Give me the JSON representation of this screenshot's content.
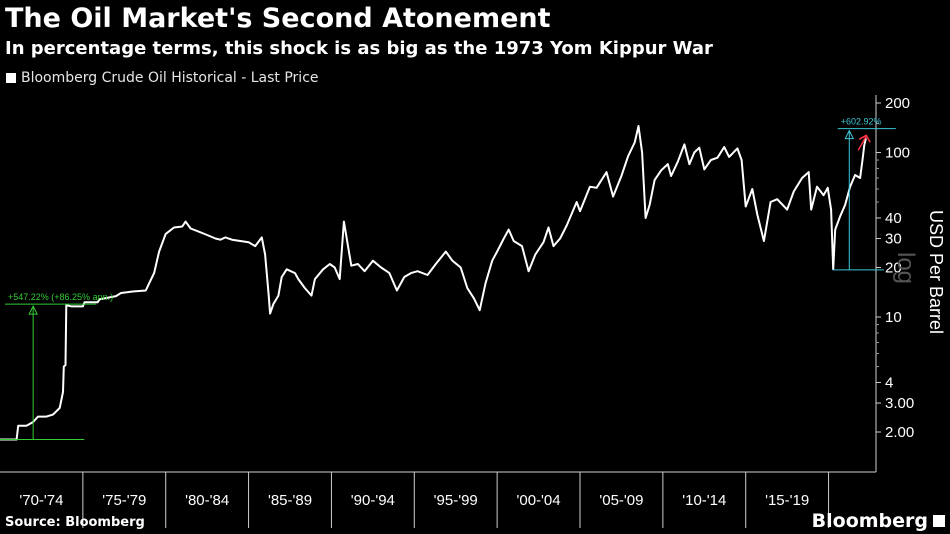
{
  "header": {
    "title": "The Oil Market's Second Atonement",
    "subtitle": "In percentage terms, this shock is as big as the 1973 Yom Kippur War"
  },
  "legend": {
    "label": "Bloomberg Crude Oil Historical - Last Price",
    "color": "#ffffff"
  },
  "footer": {
    "source": "Source: Bloomberg",
    "brand": "Bloomberg"
  },
  "colors": {
    "background": "#000000",
    "line": "#ffffff",
    "green": "#33cc33",
    "cyan": "#3cc6d6",
    "red": "#ff3344"
  },
  "chart_data": {
    "type": "line",
    "title": "The Oil Market's Second Atonement",
    "ylabel": "USD Per Barrel",
    "yscale": "log",
    "scale_label": "log",
    "ylim": [
      1.5,
      215
    ],
    "xlim": [
      1970.0,
      2022.5
    ],
    "y_ticks": [
      {
        "v": 200,
        "label": "200"
      },
      {
        "v": 100,
        "label": "100"
      },
      {
        "v": 40,
        "label": "40"
      },
      {
        "v": 30,
        "label": "30"
      },
      {
        "v": 20,
        "label": "20"
      },
      {
        "v": 10,
        "label": "10"
      },
      {
        "v": 4,
        "label": "4"
      },
      {
        "v": 3,
        "label": "3.00"
      },
      {
        "v": 2,
        "label": "2.00"
      }
    ],
    "x_categories": [
      "'70-'74",
      "'75-'79",
      "'80-'84",
      "'85-'89",
      "'90-'94",
      "'95-'99",
      "'00-'04",
      "'05-'09",
      "'10-'14",
      "'15-'19"
    ],
    "series": [
      {
        "name": "Bloomberg Crude Oil Historical - Last Price",
        "color": "#ffffff",
        "points": [
          [
            1970.0,
            1.8
          ],
          [
            1971.0,
            1.8
          ],
          [
            1971.1,
            2.18
          ],
          [
            1971.6,
            2.18
          ],
          [
            1972.0,
            2.3
          ],
          [
            1972.3,
            2.48
          ],
          [
            1972.8,
            2.48
          ],
          [
            1973.2,
            2.55
          ],
          [
            1973.6,
            2.8
          ],
          [
            1973.8,
            3.5
          ],
          [
            1973.85,
            5.0
          ],
          [
            1973.95,
            5.1
          ],
          [
            1974.0,
            11.8
          ],
          [
            1974.3,
            11.6
          ],
          [
            1975.0,
            11.6
          ],
          [
            1975.1,
            12.3
          ],
          [
            1975.9,
            12.3
          ],
          [
            1976.0,
            12.8
          ],
          [
            1977.0,
            13.4
          ],
          [
            1977.3,
            14.0
          ],
          [
            1978.0,
            14.3
          ],
          [
            1978.8,
            14.5
          ],
          [
            1979.0,
            16.0
          ],
          [
            1979.3,
            18.5
          ],
          [
            1979.6,
            25.0
          ],
          [
            1980.0,
            32.0
          ],
          [
            1980.5,
            35.0
          ],
          [
            1981.0,
            35.5
          ],
          [
            1981.2,
            38.0
          ],
          [
            1981.5,
            34.5
          ],
          [
            1982.0,
            33.0
          ],
          [
            1982.5,
            31.5
          ],
          [
            1983.0,
            30.0
          ],
          [
            1983.3,
            29.5
          ],
          [
            1983.6,
            30.5
          ],
          [
            1984.0,
            29.5
          ],
          [
            1984.5,
            29.0
          ],
          [
            1985.0,
            28.5
          ],
          [
            1985.4,
            27.0
          ],
          [
            1985.8,
            30.5
          ],
          [
            1986.0,
            24.0
          ],
          [
            1986.2,
            14.0
          ],
          [
            1986.3,
            10.5
          ],
          [
            1986.5,
            12.0
          ],
          [
            1986.8,
            13.5
          ],
          [
            1987.0,
            17.5
          ],
          [
            1987.3,
            19.5
          ],
          [
            1987.8,
            18.5
          ],
          [
            1988.0,
            17.0
          ],
          [
            1988.4,
            15.0
          ],
          [
            1988.8,
            13.5
          ],
          [
            1989.0,
            17.0
          ],
          [
            1989.5,
            19.5
          ],
          [
            1989.9,
            21.0
          ],
          [
            1990.2,
            20.0
          ],
          [
            1990.5,
            17.0
          ],
          [
            1990.75,
            38.0
          ],
          [
            1991.0,
            27.0
          ],
          [
            1991.2,
            20.5
          ],
          [
            1991.6,
            21.0
          ],
          [
            1992.0,
            19.0
          ],
          [
            1992.5,
            22.0
          ],
          [
            1993.0,
            20.0
          ],
          [
            1993.5,
            18.5
          ],
          [
            1993.95,
            14.5
          ],
          [
            1994.4,
            17.5
          ],
          [
            1994.8,
            18.5
          ],
          [
            1995.2,
            19.0
          ],
          [
            1995.8,
            18.0
          ],
          [
            1996.3,
            21.0
          ],
          [
            1996.9,
            25.0
          ],
          [
            1997.3,
            22.0
          ],
          [
            1997.8,
            20.0
          ],
          [
            1998.2,
            15.0
          ],
          [
            1998.6,
            13.0
          ],
          [
            1998.95,
            11.0
          ],
          [
            1999.3,
            16.0
          ],
          [
            1999.7,
            22.0
          ],
          [
            2000.0,
            25.0
          ],
          [
            2000.4,
            30.0
          ],
          [
            2000.7,
            34.0
          ],
          [
            2001.0,
            29.0
          ],
          [
            2001.5,
            27.0
          ],
          [
            2001.9,
            19.0
          ],
          [
            2002.3,
            24.0
          ],
          [
            2002.8,
            28.5
          ],
          [
            2003.1,
            35.0
          ],
          [
            2003.4,
            27.0
          ],
          [
            2003.8,
            30.0
          ],
          [
            2004.2,
            36.0
          ],
          [
            2004.8,
            50.0
          ],
          [
            2005.0,
            44.0
          ],
          [
            2005.6,
            62.0
          ],
          [
            2006.0,
            61.0
          ],
          [
            2006.6,
            76.0
          ],
          [
            2007.0,
            54.0
          ],
          [
            2007.5,
            72.0
          ],
          [
            2007.9,
            95.0
          ],
          [
            2008.3,
            115.0
          ],
          [
            2008.53,
            145.0
          ],
          [
            2008.75,
            100.0
          ],
          [
            2008.96,
            40.0
          ],
          [
            2009.2,
            48.0
          ],
          [
            2009.5,
            68.0
          ],
          [
            2009.9,
            78.0
          ],
          [
            2010.3,
            85.0
          ],
          [
            2010.5,
            72.0
          ],
          [
            2010.9,
            88.0
          ],
          [
            2011.3,
            112.0
          ],
          [
            2011.6,
            85.0
          ],
          [
            2011.9,
            100.0
          ],
          [
            2012.2,
            107.0
          ],
          [
            2012.5,
            79.0
          ],
          [
            2012.9,
            90.0
          ],
          [
            2013.3,
            93.0
          ],
          [
            2013.7,
            108.0
          ],
          [
            2014.0,
            94.0
          ],
          [
            2014.5,
            106.0
          ],
          [
            2014.75,
            90.0
          ],
          [
            2015.0,
            47.0
          ],
          [
            2015.4,
            60.0
          ],
          [
            2015.7,
            42.0
          ],
          [
            2016.1,
            29.0
          ],
          [
            2016.5,
            50.0
          ],
          [
            2016.9,
            52.0
          ],
          [
            2017.5,
            45.0
          ],
          [
            2017.9,
            58.0
          ],
          [
            2018.4,
            70.0
          ],
          [
            2018.8,
            76.0
          ],
          [
            2018.95,
            45.0
          ],
          [
            2019.3,
            62.0
          ],
          [
            2019.7,
            55.0
          ],
          [
            2019.95,
            61.0
          ],
          [
            2020.15,
            45.0
          ],
          [
            2020.28,
            19.5
          ],
          [
            2020.4,
            34.0
          ],
          [
            2020.7,
            41.0
          ],
          [
            2021.0,
            48.0
          ],
          [
            2021.3,
            62.0
          ],
          [
            2021.6,
            73.0
          ],
          [
            2021.9,
            70.0
          ],
          [
            2022.05,
            90.0
          ],
          [
            2022.15,
            110.0
          ],
          [
            2022.25,
            122.0
          ]
        ]
      }
    ],
    "annotations": [
      {
        "text": "+547.22% (+86.25% ann.)",
        "color": "#33cc33",
        "from": [
          1970.0,
          1.8
        ],
        "to": [
          1974.0,
          11.65
        ],
        "marker": "triangle"
      },
      {
        "text": "+602.92%",
        "color": "#3cc6d6",
        "from": [
          2020.25,
          19.33
        ],
        "to": [
          2022.25,
          135.8
        ],
        "marker": "triangle"
      },
      {
        "text": "",
        "color": "#ff3344",
        "at": [
          2022.15,
          122.0
        ],
        "marker": "arrow"
      }
    ]
  }
}
